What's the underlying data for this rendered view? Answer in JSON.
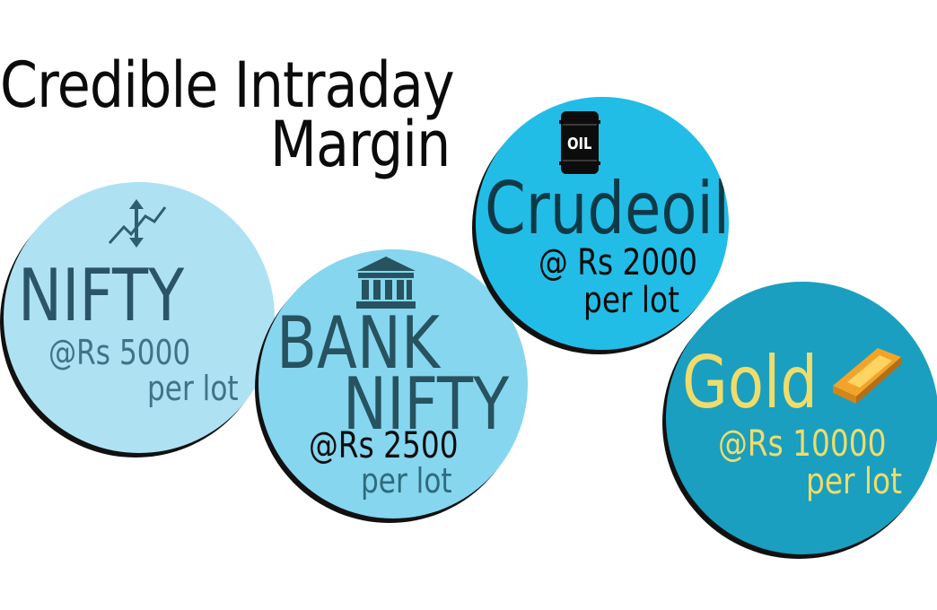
{
  "title": {
    "line1": "Credible Intraday",
    "line2": "Margin"
  },
  "nifty": {
    "name": "NIFTY",
    "price": "@Rs 5000",
    "unit": "per lot",
    "icon": "trend-arrows-icon",
    "color": "#aee2f2"
  },
  "banknifty": {
    "name_line1": "BANK",
    "name_line2": "NIFTY",
    "price": "@Rs 2500",
    "unit": "per lot",
    "icon": "bank-building-icon",
    "color": "#86d6ef"
  },
  "crudeoil": {
    "name": "Crudeoil",
    "price": "@ Rs 2000",
    "unit": "per lot",
    "icon": "oil-barrel-icon",
    "icon_label": "OIL",
    "color": "#22bde6"
  },
  "gold": {
    "name": "Gold",
    "price": "@Rs 10000",
    "unit": "per lot",
    "icon": "gold-bar-icon",
    "color": "#1a9fc0",
    "text_color": "#f0dc6a"
  }
}
